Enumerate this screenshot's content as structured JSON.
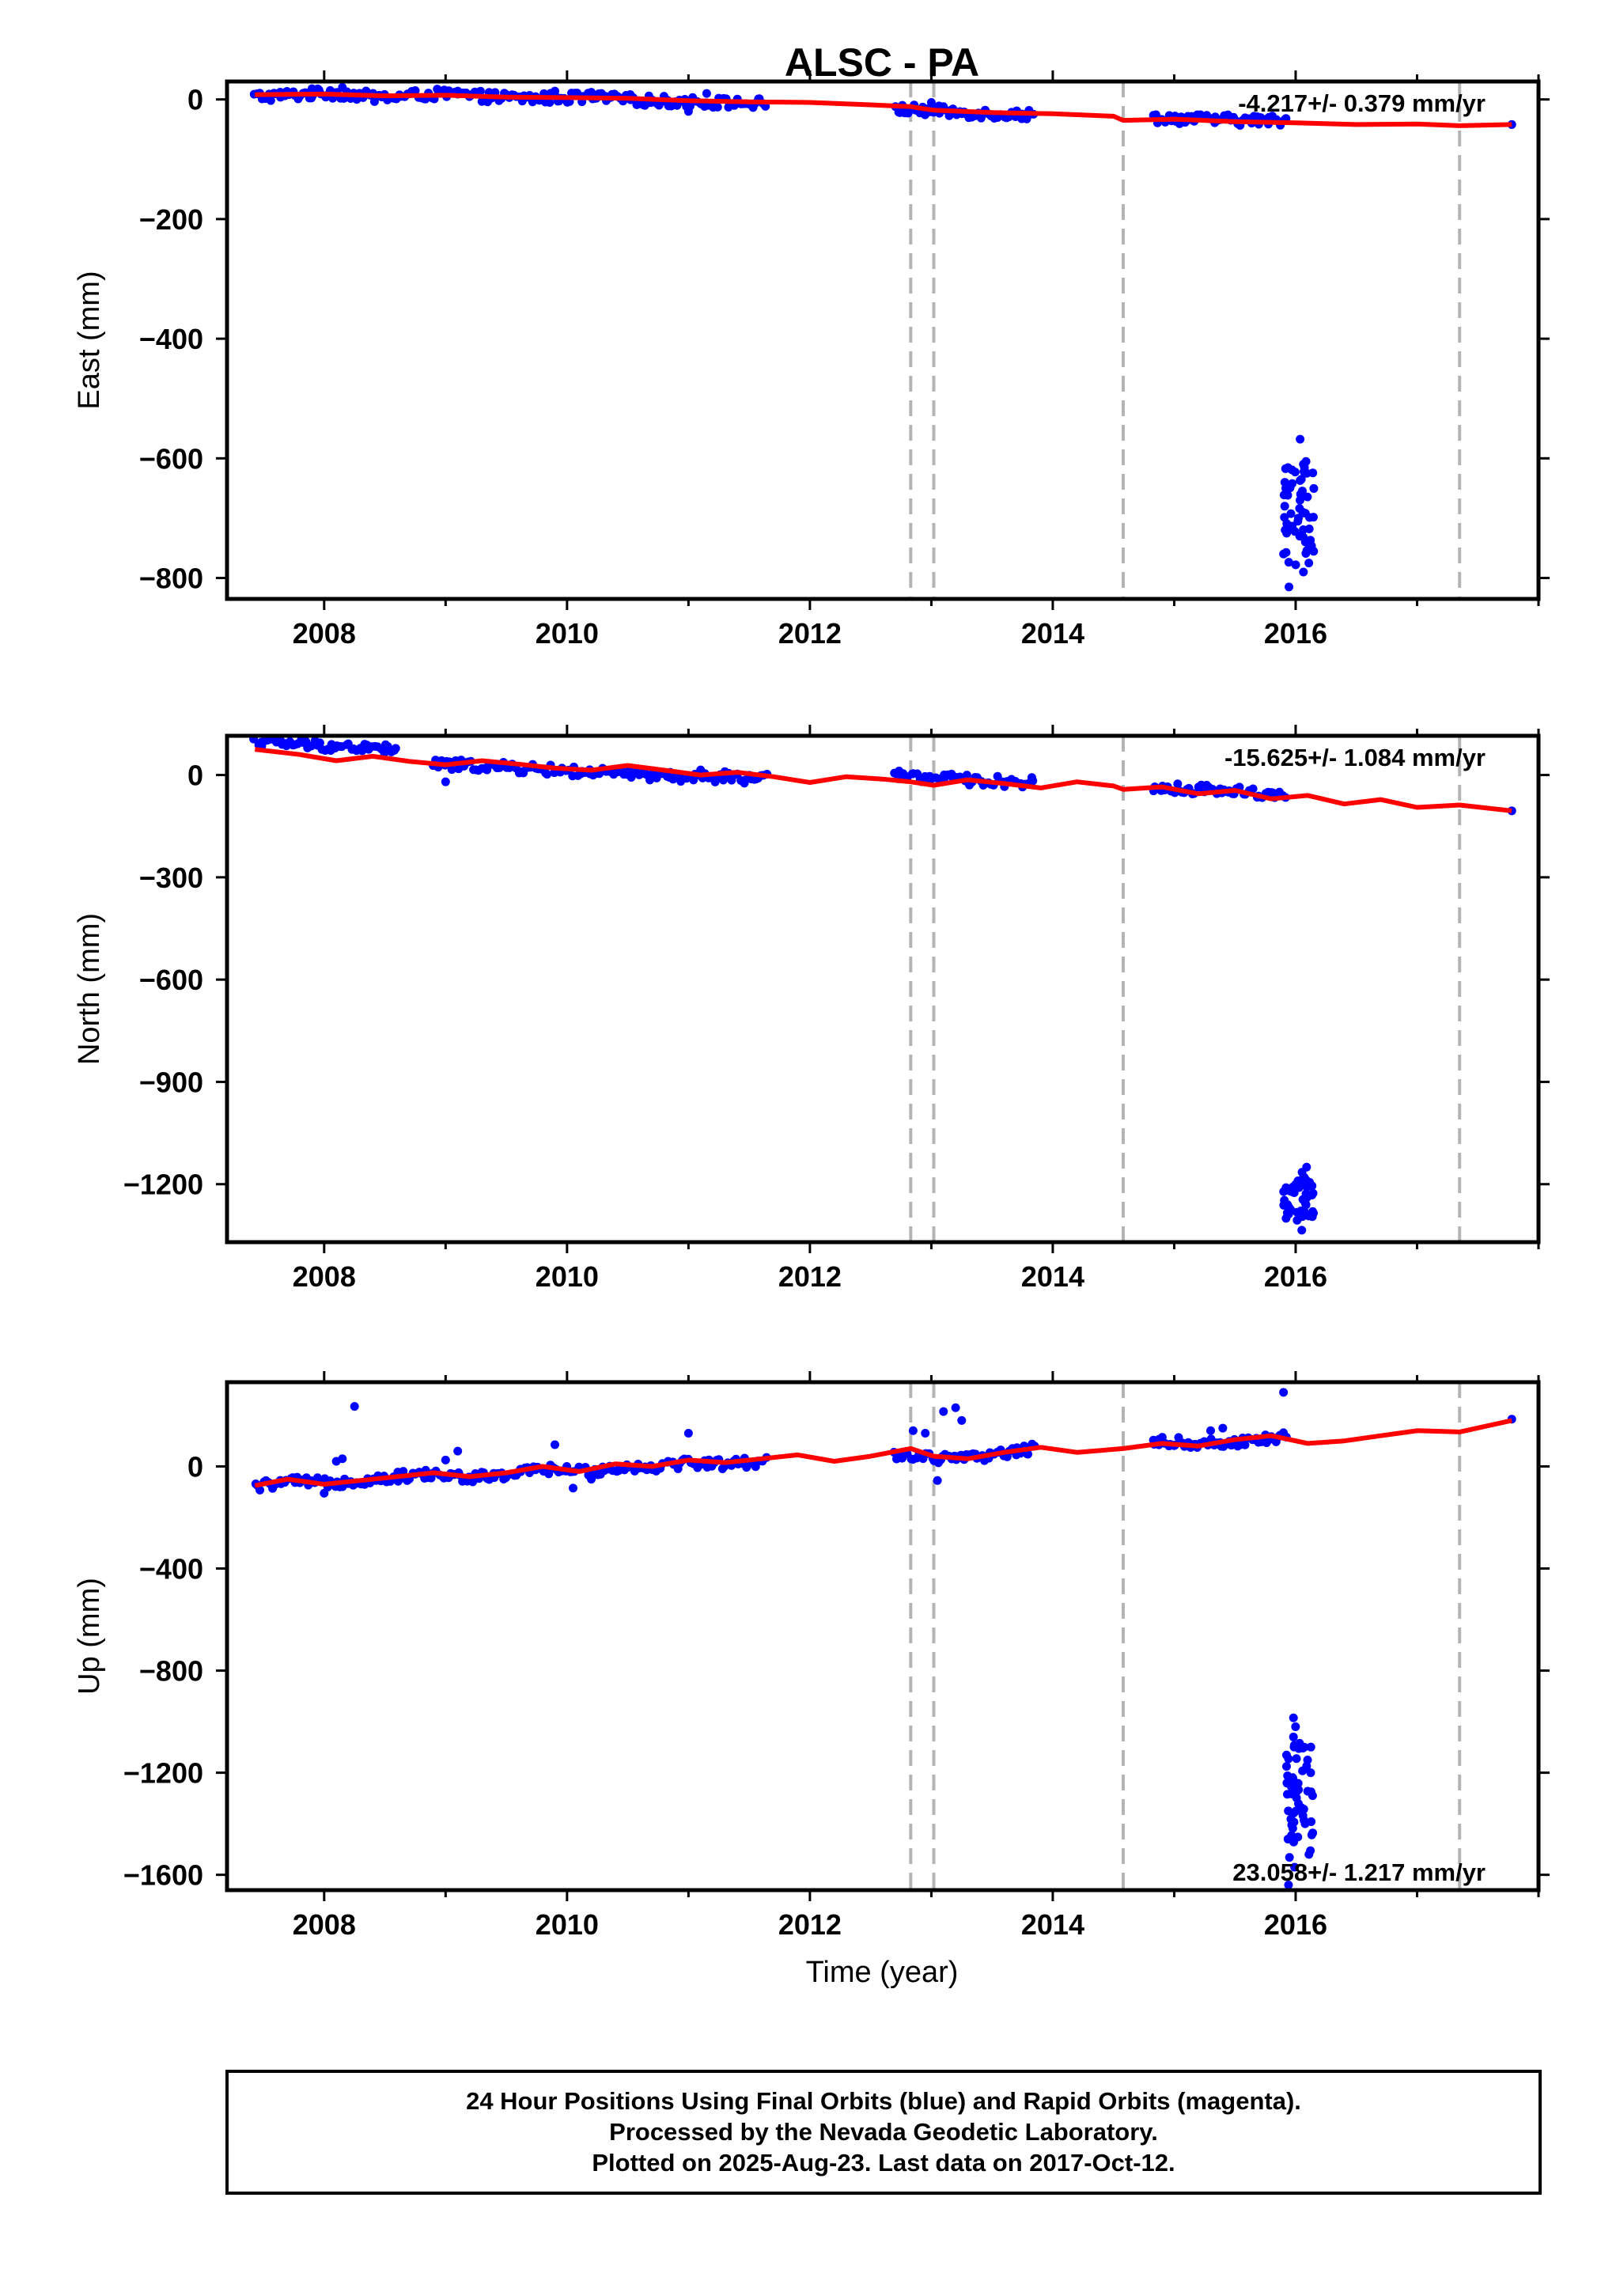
{
  "chart_data": {
    "type": "scatter",
    "title": "ALSC - PA",
    "xlabel": "Time (year)",
    "xlim": [
      2007.2,
      2018.0
    ],
    "x_ticks": [
      2008,
      2010,
      2012,
      2014,
      2016
    ],
    "x_tick_labels": [
      "2008",
      "2010",
      "2012",
      "2014",
      "2016"
    ],
    "vertical_lines": [
      2012.83,
      2013.02,
      2014.58,
      2017.35
    ],
    "vertical_lines_style": "gray dashed",
    "colors": {
      "observed": "#0000ff",
      "model": "#ff0000",
      "event_line": "#b4b4b4"
    },
    "panels": [
      {
        "ylabel": "East (mm)",
        "ylim": [
          -835,
          30
        ],
        "y_ticks": [
          0,
          -200,
          -400,
          -600,
          -800
        ],
        "y_tick_labels": [
          "0",
          "−200",
          "−400",
          "−600",
          "−800"
        ],
        "rate_text": "-4.217+/- 0.379 mm/yr",
        "rate_position": "top-right",
        "series": [
          {
            "name": "positions",
            "style": "blue dots",
            "segments": [
              {
                "x": [
                  2007.43,
                  2007.6,
                  2007.8,
                  2008.0,
                  2008.15,
                  2008.3,
                  2008.45,
                  2008.6,
                  2008.8,
                  2009.0,
                  2009.2,
                  2009.4,
                  2009.6,
                  2009.8,
                  2010.0,
                  2010.2,
                  2010.4,
                  2010.6,
                  2010.8,
                  2011.0,
                  2011.2,
                  2011.4,
                  2011.65
                ],
                "y": [
                  5,
                  6,
                  8,
                  10,
                  10,
                  7,
                  3,
                  4,
                  8,
                  9,
                  6,
                  4,
                  2,
                  2,
                  3,
                  3,
                  1,
                  -1,
                  -3,
                  -4,
                  -5,
                  -6,
                  -7
                ]
              },
              {
                "x": [
                  2012.7,
                  2012.9,
                  2013.1,
                  2013.3,
                  2013.5,
                  2013.7,
                  2013.85
                ],
                "y": [
                  -16,
                  -18,
                  -20,
                  -22,
                  -24,
                  -25,
                  -26
                ]
              },
              {
                "x": [
                  2014.82,
                  2015.0,
                  2015.2,
                  2015.4,
                  2015.6,
                  2015.8,
                  2015.92
                ],
                "y": [
                  -30,
                  -32,
                  -33,
                  -34,
                  -35,
                  -35,
                  -36
                ]
              },
              {
                "x": [
                  2017.78
                ],
                "y": [
                  -42
                ]
              }
            ],
            "outliers": {
              "x": [
                2007.9,
                2008.05,
                2008.15,
                2009.1,
                2009.9,
                2010.2,
                2011.0,
                2011.15,
                2013.0,
                2013.1
              ],
              "y": [
                18,
                15,
                20,
                14,
                14,
                12,
                -20,
                10,
                -5,
                -12
              ]
            },
            "excursion": {
              "x_range": [
                2015.9,
                2016.15
              ],
              "values": [
                -568,
                -625,
                -640,
                -650,
                -660,
                -670,
                -680,
                -690,
                -700,
                -705,
                -715,
                -725,
                -730,
                -745,
                -760,
                -775,
                -790,
                -815
              ],
              "count": 60
            }
          },
          {
            "name": "model",
            "style": "red line",
            "x": [
              2007.43,
              2008.0,
              2008.5,
              2009.0,
              2009.5,
              2010.0,
              2010.5,
              2011.0,
              2011.5,
              2012.0,
              2012.5,
              2012.83,
              2013.02,
              2013.5,
              2014.0,
              2014.5,
              2014.58,
              2015.0,
              2015.5,
              2016.0,
              2016.5,
              2017.0,
              2017.35,
              2017.78
            ],
            "y": [
              8,
              9,
              6,
              7,
              4,
              3,
              2,
              -2,
              -4,
              -5,
              -9,
              -12,
              -18,
              -22,
              -24,
              -28,
              -35,
              -33,
              -37,
              -39,
              -42,
              -41,
              -44,
              -42
            ]
          }
        ]
      },
      {
        "ylabel": "North (mm)",
        "ylim": [
          -1370,
          115
        ],
        "y_ticks": [
          0,
          -300,
          -600,
          -900,
          -1200
        ],
        "y_tick_labels": [
          "0",
          "−300",
          "−600",
          "−900",
          "−1200"
        ],
        "rate_text": "-15.625+/- 1.084 mm/yr",
        "rate_position": "top-right",
        "series": [
          {
            "name": "positions",
            "style": "blue dots",
            "segments": [
              {
                "x": [
                  2007.43,
                  2007.6,
                  2007.8,
                  2008.0,
                  2008.2,
                  2008.4,
                  2008.6
                ],
                "y": [
                  98,
                  95,
                  90,
                  86,
                  82,
                  78,
                  74
                ]
              },
              {
                "x": [
                  2008.9,
                  2009.2,
                  2009.5,
                  2009.8,
                  2010.0,
                  2010.3,
                  2010.6,
                  2010.9,
                  2011.2,
                  2011.5,
                  2011.65
                ],
                "y": [
                  32,
                  28,
                  22,
                  16,
                  12,
                  5,
                  0,
                  -5,
                  -8,
                  -10,
                  -12
                ]
              },
              {
                "x": [
                  2012.7,
                  2012.9,
                  2013.1,
                  2013.3,
                  2013.5,
                  2013.85
                ],
                "y": [
                  0,
                  -5,
                  -10,
                  -15,
                  -18,
                  -22
                ]
              },
              {
                "x": [
                  2014.82,
                  2015.0,
                  2015.2,
                  2015.4,
                  2015.6,
                  2015.92
                ],
                "y": [
                  -38,
                  -40,
                  -42,
                  -45,
                  -50,
                  -58
                ]
              },
              {
                "x": [
                  2017.78
                ],
                "y": [
                  -105
                ]
              }
            ],
            "outliers": {
              "x": [
                2009.0,
                2011.1,
                2011.3
              ],
              "y": [
                -20,
                15,
                10
              ]
            },
            "excursion": {
              "x_range": [
                2015.9,
                2016.15
              ],
              "values": [
                -1150,
                -1165,
                -1180,
                -1195,
                -1210,
                -1220,
                -1230,
                -1245,
                -1260,
                -1280,
                -1300,
                -1335
              ],
              "count": 50
            }
          },
          {
            "name": "model",
            "style": "red line",
            "x": [
              2007.43,
              2007.8,
              2008.1,
              2008.4,
              2008.7,
              2009.0,
              2009.3,
              2009.6,
              2009.9,
              2010.2,
              2010.5,
              2010.8,
              2011.1,
              2011.4,
              2011.7,
              2012.0,
              2012.3,
              2012.6,
              2012.83,
              2013.02,
              2013.3,
              2013.6,
              2013.9,
              2014.2,
              2014.5,
              2014.58,
              2014.9,
              2015.2,
              2015.5,
              2015.8,
              2016.1,
              2016.4,
              2016.7,
              2017.0,
              2017.35,
              2017.78
            ],
            "y": [
              75,
              60,
              42,
              55,
              40,
              30,
              42,
              32,
              20,
              14,
              28,
              14,
              0,
              8,
              -5,
              -22,
              -5,
              -12,
              -20,
              -30,
              -14,
              -25,
              -38,
              -20,
              -32,
              -42,
              -35,
              -55,
              -45,
              -70,
              -60,
              -85,
              -72,
              -95,
              -88,
              -105
            ]
          }
        ]
      },
      {
        "ylabel": "Up (mm)",
        "ylim": [
          -1660,
          330
        ],
        "y_ticks": [
          0,
          -400,
          -800,
          -1200,
          -1600
        ],
        "y_tick_labels": [
          "0",
          "−400",
          "−800",
          "−1200",
          "−1600"
        ],
        "rate_text": "23.058+/- 1.217 mm/yr",
        "rate_position": "bottom-right",
        "series": [
          {
            "name": "positions",
            "style": "blue dots",
            "segments": [
              {
                "x": [
                  2007.43,
                  2007.7,
                  2008.0,
                  2008.3,
                  2008.6,
                  2008.9,
                  2009.2,
                  2009.5,
                  2009.8,
                  2010.1,
                  2010.4,
                  2010.7,
                  2011.0,
                  2011.3,
                  2011.65
                ],
                "y": [
                  -80,
                  -60,
                  -65,
                  -55,
                  -40,
                  -30,
                  -45,
                  -35,
                  -10,
                  -20,
                  -5,
                  0,
                  15,
                  10,
                  20
                ]
              },
              {
                "x": [
                  2012.7,
                  2012.9,
                  2013.1,
                  2013.3,
                  2013.5,
                  2013.85
                ],
                "y": [
                  50,
                  40,
                  30,
                  30,
                  45,
                  70
                ]
              },
              {
                "x": [
                  2014.82,
                  2015.0,
                  2015.2,
                  2015.4,
                  2015.6,
                  2015.92
                ],
                "y": [
                  100,
                  95,
                  90,
                  90,
                  100,
                  115
                ]
              },
              {
                "x": [
                  2017.78
                ],
                "y": [
                  185
                ]
              }
            ],
            "outliers": {
              "x": [
                2008.0,
                2008.15,
                2008.25,
                2008.1,
                2009.1,
                2009.0,
                2009.9,
                2010.05,
                2010.2,
                2011.0,
                2012.85,
                2012.95,
                2013.1,
                2013.2,
                2013.25,
                2013.05,
                2015.3,
                2015.4,
                2015.9
              ],
              "y": [
                -105,
                30,
                235,
                20,
                60,
                25,
                85,
                -85,
                -50,
                130,
                140,
                130,
                215,
                230,
                180,
                -55,
                140,
                150,
                290
              ]
            },
            "excursion": {
              "x_range": [
                2015.9,
                2016.15
              ],
              "values": [
                -985,
                -1020,
                -1060,
                -1100,
                -1150,
                -1200,
                -1240,
                -1290,
                -1350,
                -1400,
                -1460,
                -1520,
                -1570,
                -1640
              ],
              "count": 60
            }
          },
          {
            "name": "model",
            "style": "red line",
            "x": [
              2007.43,
              2007.7,
              2008.0,
              2008.3,
              2008.6,
              2008.9,
              2009.2,
              2009.5,
              2009.8,
              2010.1,
              2010.4,
              2010.7,
              2011.0,
              2011.3,
              2011.6,
              2011.9,
              2012.2,
              2012.5,
              2012.83,
              2013.02,
              2013.3,
              2013.6,
              2013.9,
              2014.2,
              2014.58,
              2014.9,
              2015.2,
              2015.5,
              2015.8,
              2016.1,
              2016.4,
              2016.7,
              2017.0,
              2017.35,
              2017.78
            ],
            "y": [
              -75,
              -50,
              -70,
              -55,
              -40,
              -25,
              -40,
              -25,
              0,
              -20,
              10,
              0,
              25,
              15,
              30,
              45,
              20,
              40,
              70,
              40,
              30,
              55,
              75,
              55,
              70,
              90,
              80,
              105,
              120,
              90,
              100,
              120,
              140,
              135,
              180
            ]
          }
        ]
      }
    ],
    "footer": {
      "lines": [
        "24 Hour Positions Using Final Orbits (blue) and Rapid Orbits (magenta).",
        "Processed by the Nevada Geodetic Laboratory.",
        "Plotted on 2025-Aug-23. Last data on 2017-Oct-12."
      ]
    }
  }
}
